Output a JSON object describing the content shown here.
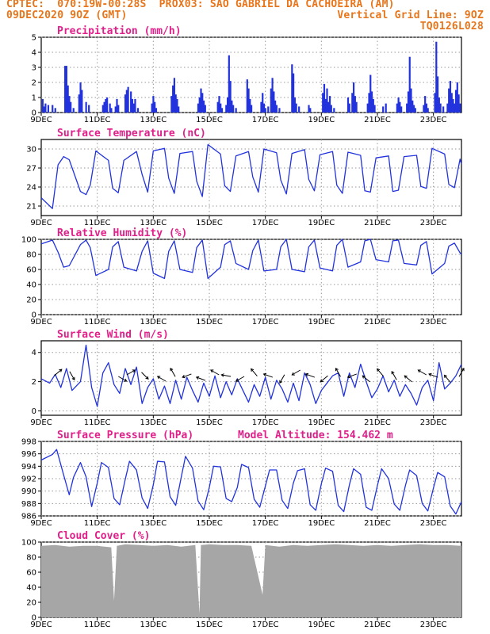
{
  "header": {
    "line1_left": "CPTEC:  070:19W-00:28S  PROX03: SAO GABRIEL DA CACHOEIRA (AM)",
    "line2_left": "09DEC2020 9OZ (GMT)",
    "line2_right": "Vertical Grid Line: 9OZ",
    "line3_right": "TQ0126L028"
  },
  "colors": {
    "header": "#e8751a",
    "title": "#e0208a",
    "series": "#2233dd",
    "cloud": "#a6a6a6"
  },
  "x_axis": {
    "tick_labels": [
      "9DEC",
      "11DEC",
      "13DEC",
      "15DEC",
      "17DEC",
      "19DEC",
      "21DEC",
      "23DEC"
    ],
    "tick_days": [
      0,
      2,
      4,
      6,
      8,
      10,
      12,
      14
    ],
    "range_days": [
      0,
      15
    ]
  },
  "chart_data": [
    {
      "type": "bar",
      "title": "Precipitation (mm/h)",
      "ylim": [
        0,
        5
      ],
      "yticks": [
        0,
        1,
        2,
        3,
        4,
        5
      ],
      "bars": [
        [
          0.05,
          0.9
        ],
        [
          0.1,
          0.4
        ],
        [
          0.15,
          0.6
        ],
        [
          0.25,
          0.5
        ],
        [
          0.4,
          0.5
        ],
        [
          0.5,
          0.3
        ],
        [
          0.85,
          3.1
        ],
        [
          0.9,
          3.1
        ],
        [
          0.95,
          1.8
        ],
        [
          1.0,
          1.1
        ],
        [
          1.05,
          0.7
        ],
        [
          1.15,
          0.3
        ],
        [
          1.35,
          1.2
        ],
        [
          1.4,
          2.0
        ],
        [
          1.45,
          1.5
        ],
        [
          1.6,
          0.7
        ],
        [
          1.7,
          0.5
        ],
        [
          2.2,
          0.5
        ],
        [
          2.25,
          0.7
        ],
        [
          2.3,
          0.9
        ],
        [
          2.35,
          1.0
        ],
        [
          2.45,
          0.6
        ],
        [
          2.5,
          0.3
        ],
        [
          2.65,
          0.4
        ],
        [
          2.7,
          0.9
        ],
        [
          2.75,
          0.5
        ],
        [
          3.0,
          1.2
        ],
        [
          3.05,
          1.5
        ],
        [
          3.1,
          1.7
        ],
        [
          3.2,
          1.4
        ],
        [
          3.25,
          0.9
        ],
        [
          3.3,
          0.6
        ],
        [
          3.35,
          0.9
        ],
        [
          3.45,
          0.3
        ],
        [
          3.95,
          0.6
        ],
        [
          4.0,
          1.1
        ],
        [
          4.05,
          0.7
        ],
        [
          4.1,
          0.3
        ],
        [
          4.65,
          1.1
        ],
        [
          4.7,
          1.8
        ],
        [
          4.75,
          2.3
        ],
        [
          4.8,
          1.2
        ],
        [
          4.85,
          0.9
        ],
        [
          4.9,
          0.4
        ],
        [
          5.6,
          0.6
        ],
        [
          5.65,
          1.0
        ],
        [
          5.7,
          1.6
        ],
        [
          5.75,
          1.3
        ],
        [
          5.8,
          0.8
        ],
        [
          5.85,
          0.5
        ],
        [
          6.3,
          0.7
        ],
        [
          6.35,
          1.1
        ],
        [
          6.4,
          0.6
        ],
        [
          6.45,
          0.3
        ],
        [
          6.6,
          0.5
        ],
        [
          6.65,
          1.0
        ],
        [
          6.7,
          3.8
        ],
        [
          6.75,
          2.1
        ],
        [
          6.8,
          0.8
        ],
        [
          6.85,
          0.5
        ],
        [
          6.95,
          0.3
        ],
        [
          7.35,
          2.2
        ],
        [
          7.4,
          1.6
        ],
        [
          7.45,
          0.9
        ],
        [
          7.5,
          0.5
        ],
        [
          7.85,
          0.7
        ],
        [
          7.9,
          1.3
        ],
        [
          7.95,
          0.6
        ],
        [
          8.0,
          0.3
        ],
        [
          8.1,
          0.4
        ],
        [
          8.2,
          1.6
        ],
        [
          8.25,
          2.3
        ],
        [
          8.3,
          1.4
        ],
        [
          8.35,
          0.8
        ],
        [
          8.4,
          0.5
        ],
        [
          8.5,
          0.3
        ],
        [
          8.95,
          3.2
        ],
        [
          9.0,
          2.6
        ],
        [
          9.05,
          1.0
        ],
        [
          9.1,
          0.6
        ],
        [
          9.2,
          0.4
        ],
        [
          9.55,
          0.5
        ],
        [
          9.6,
          0.3
        ],
        [
          10.05,
          1.3
        ],
        [
          10.1,
          1.9
        ],
        [
          10.15,
          0.9
        ],
        [
          10.2,
          1.6
        ],
        [
          10.25,
          0.7
        ],
        [
          10.3,
          1.1
        ],
        [
          10.35,
          0.5
        ],
        [
          10.45,
          0.3
        ],
        [
          10.95,
          1.0
        ],
        [
          11.0,
          0.6
        ],
        [
          11.1,
          1.3
        ],
        [
          11.15,
          2.0
        ],
        [
          11.2,
          1.1
        ],
        [
          11.25,
          0.7
        ],
        [
          11.65,
          0.6
        ],
        [
          11.7,
          1.3
        ],
        [
          11.75,
          2.5
        ],
        [
          11.8,
          1.4
        ],
        [
          11.85,
          0.9
        ],
        [
          11.9,
          0.5
        ],
        [
          12.2,
          0.4
        ],
        [
          12.3,
          0.6
        ],
        [
          12.7,
          0.6
        ],
        [
          12.75,
          1.0
        ],
        [
          12.8,
          0.7
        ],
        [
          12.85,
          0.4
        ],
        [
          13.05,
          0.6
        ],
        [
          13.1,
          1.4
        ],
        [
          13.15,
          3.7
        ],
        [
          13.2,
          1.6
        ],
        [
          13.25,
          0.8
        ],
        [
          13.3,
          0.5
        ],
        [
          13.35,
          0.3
        ],
        [
          13.65,
          0.5
        ],
        [
          13.7,
          1.1
        ],
        [
          13.75,
          0.6
        ],
        [
          13.8,
          0.3
        ],
        [
          14.05,
          1.3
        ],
        [
          14.1,
          4.7
        ],
        [
          14.15,
          2.4
        ],
        [
          14.2,
          1.0
        ],
        [
          14.25,
          0.6
        ],
        [
          14.35,
          0.4
        ],
        [
          14.5,
          0.6
        ],
        [
          14.55,
          1.6
        ],
        [
          14.6,
          2.1
        ],
        [
          14.65,
          1.3
        ],
        [
          14.7,
          0.9
        ],
        [
          14.75,
          0.6
        ],
        [
          14.8,
          1.5
        ],
        [
          14.85,
          2.0
        ],
        [
          14.9,
          1.2
        ],
        [
          14.95,
          0.6
        ]
      ]
    },
    {
      "type": "line",
      "title": "Surface Temperature (nC)",
      "ylim": [
        19.5,
        31.5
      ],
      "yticks": [
        21,
        24,
        27,
        30
      ],
      "x": [
        0,
        0.4,
        0.6,
        0.8,
        1.0,
        1.4,
        1.6,
        1.75,
        1.95,
        2.4,
        2.55,
        2.75,
        2.95,
        3.4,
        3.6,
        3.8,
        4.0,
        4.4,
        4.55,
        4.75,
        4.95,
        5.4,
        5.55,
        5.75,
        5.95,
        6.4,
        6.55,
        6.75,
        6.95,
        7.4,
        7.55,
        7.75,
        7.95,
        8.4,
        8.55,
        8.75,
        8.95,
        9.4,
        9.55,
        9.75,
        9.95,
        10.4,
        10.55,
        10.75,
        10.95,
        11.4,
        11.55,
        11.75,
        11.95,
        12.4,
        12.55,
        12.75,
        12.95,
        13.4,
        13.55,
        13.75,
        13.95,
        14.4,
        14.55,
        14.75,
        14.95,
        15.0
      ],
      "y": [
        22.3,
        20.6,
        27.5,
        28.8,
        28.3,
        23.3,
        22.8,
        24.3,
        29.7,
        28.2,
        23.8,
        23.1,
        28.2,
        29.6,
        26.0,
        23.2,
        29.7,
        30.1,
        25.4,
        23.0,
        29.3,
        29.6,
        24.9,
        22.5,
        30.7,
        29.2,
        24.2,
        23.3,
        28.9,
        29.6,
        25.6,
        23.2,
        30.0,
        29.4,
        25.1,
        22.9,
        29.3,
        29.9,
        25.2,
        23.4,
        29.1,
        29.6,
        24.3,
        23.0,
        29.5,
        29.0,
        23.4,
        23.2,
        28.6,
        28.9,
        23.3,
        23.5,
        28.8,
        29.0,
        24.1,
        23.8,
        30.1,
        29.2,
        24.4,
        23.9,
        28.4,
        27.6
      ]
    },
    {
      "type": "line",
      "title": "Relative Humidity (%)",
      "ylim": [
        0,
        100
      ],
      "yticks": [
        0,
        20,
        40,
        60,
        80,
        100
      ],
      "x": [
        0,
        0.4,
        0.6,
        0.8,
        1.0,
        1.4,
        1.6,
        1.75,
        1.95,
        2.4,
        2.55,
        2.75,
        2.95,
        3.4,
        3.6,
        3.8,
        4.0,
        4.4,
        4.55,
        4.75,
        4.95,
        5.4,
        5.55,
        5.75,
        5.95,
        6.4,
        6.55,
        6.75,
        6.95,
        7.4,
        7.55,
        7.75,
        7.95,
        8.4,
        8.55,
        8.75,
        8.95,
        9.4,
        9.55,
        9.75,
        9.95,
        10.4,
        10.55,
        10.75,
        10.95,
        11.4,
        11.55,
        11.75,
        11.95,
        12.4,
        12.55,
        12.75,
        12.95,
        13.4,
        13.55,
        13.75,
        13.95,
        14.4,
        14.55,
        14.75,
        14.95,
        15.0
      ],
      "y": [
        94,
        99,
        83,
        63,
        65,
        93,
        99,
        89,
        52,
        60,
        90,
        97,
        63,
        58,
        84,
        98,
        55,
        48,
        84,
        98,
        60,
        56,
        89,
        99,
        48,
        63,
        93,
        98,
        68,
        60,
        85,
        99,
        58,
        60,
        90,
        100,
        60,
        57,
        90,
        99,
        62,
        58,
        92,
        100,
        63,
        70,
        98,
        100,
        73,
        70,
        98,
        99,
        68,
        66,
        92,
        97,
        54,
        68,
        91,
        95,
        82,
        80
      ]
    },
    {
      "type": "line",
      "title": "Surface Wind (m/s)",
      "ylim": [
        -0.3,
        4.8
      ],
      "yticks": [
        0,
        2,
        4
      ],
      "x": [
        0,
        0.3,
        0.5,
        0.7,
        0.9,
        1.1,
        1.4,
        1.6,
        1.8,
        2.0,
        2.2,
        2.4,
        2.6,
        2.8,
        3.0,
        3.2,
        3.4,
        3.6,
        3.8,
        4.0,
        4.2,
        4.4,
        4.6,
        4.8,
        5.0,
        5.2,
        5.4,
        5.6,
        5.8,
        6.0,
        6.2,
        6.4,
        6.6,
        6.8,
        7.0,
        7.2,
        7.4,
        7.6,
        7.8,
        8.0,
        8.2,
        8.4,
        8.6,
        8.8,
        9.0,
        9.2,
        9.4,
        9.6,
        9.8,
        10.0,
        10.2,
        10.4,
        10.6,
        10.8,
        11.0,
        11.2,
        11.4,
        11.6,
        11.8,
        12.0,
        12.2,
        12.4,
        12.6,
        12.8,
        13.0,
        13.2,
        13.4,
        13.6,
        13.8,
        14.0,
        14.2,
        14.4,
        14.6,
        14.8,
        15.0
      ],
      "y": [
        2.2,
        1.9,
        2.5,
        1.6,
        2.9,
        1.4,
        2.0,
        4.5,
        1.6,
        0.3,
        2.6,
        3.3,
        1.8,
        1.2,
        2.9,
        1.8,
        3.0,
        0.5,
        1.6,
        2.2,
        0.8,
        1.7,
        0.5,
        2.1,
        0.8,
        2.3,
        1.4,
        0.6,
        1.9,
        1.0,
        2.4,
        0.9,
        2.0,
        1.1,
        2.2,
        1.4,
        0.6,
        1.8,
        1.0,
        2.3,
        0.8,
        2.1,
        1.5,
        0.6,
        1.9,
        0.7,
        2.6,
        1.8,
        0.5,
        1.4,
        1.9,
        2.4,
        2.6,
        1.0,
        2.6,
        1.6,
        3.2,
        2.0,
        0.9,
        1.5,
        2.4,
        1.3,
        2.1,
        1.0,
        1.8,
        1.2,
        0.4,
        1.6,
        2.1,
        0.7,
        3.3,
        1.5,
        1.9,
        2.4,
        3.2
      ]
    },
    {
      "type": "line",
      "title": "Surface Pressure (hPa)",
      "annotation": "Model Altitude: 154.462 m",
      "ylim": [
        986,
        998
      ],
      "yticks": [
        986,
        988,
        990,
        992,
        994,
        996,
        998
      ],
      "x": [
        0,
        0.4,
        0.55,
        0.8,
        1.0,
        1.15,
        1.4,
        1.6,
        1.8,
        2.0,
        2.15,
        2.4,
        2.6,
        2.8,
        3.0,
        3.15,
        3.4,
        3.6,
        3.8,
        4.0,
        4.15,
        4.4,
        4.6,
        4.8,
        5.0,
        5.15,
        5.4,
        5.6,
        5.8,
        6.0,
        6.15,
        6.4,
        6.6,
        6.8,
        7.0,
        7.15,
        7.4,
        7.6,
        7.8,
        8.0,
        8.15,
        8.4,
        8.6,
        8.8,
        9.0,
        9.15,
        9.4,
        9.6,
        9.8,
        10.0,
        10.15,
        10.4,
        10.6,
        10.8,
        11.0,
        11.15,
        11.4,
        11.6,
        11.8,
        12.0,
        12.15,
        12.4,
        12.6,
        12.8,
        13.0,
        13.15,
        13.4,
        13.6,
        13.8,
        14.0,
        14.15,
        14.4,
        14.6,
        14.8,
        15.0
      ],
      "y": [
        995.0,
        995.9,
        996.7,
        992.6,
        989.4,
        992.2,
        994.6,
        992.3,
        987.5,
        991.3,
        994.6,
        993.8,
        988.8,
        987.8,
        991.9,
        994.8,
        993.4,
        988.9,
        987.2,
        991.0,
        994.8,
        994.7,
        989.1,
        987.7,
        992.3,
        995.6,
        993.7,
        988.4,
        987.0,
        990.6,
        994.0,
        993.9,
        988.8,
        988.3,
        990.6,
        994.3,
        993.8,
        988.7,
        987.4,
        990.8,
        993.4,
        993.4,
        988.5,
        987.2,
        991.3,
        993.3,
        993.6,
        987.8,
        986.9,
        991.2,
        993.7,
        993.2,
        987.7,
        986.7,
        991.0,
        993.6,
        992.7,
        987.4,
        986.9,
        990.9,
        993.6,
        992.0,
        987.9,
        986.9,
        990.9,
        993.4,
        992.5,
        988.0,
        986.8,
        990.5,
        993.0,
        992.3,
        987.6,
        986.3,
        988.3
      ]
    },
    {
      "type": "bar",
      "title": "Cloud Cover (%)",
      "ylim": [
        0,
        100
      ],
      "yticks": [
        0,
        20,
        40,
        60,
        80,
        100
      ],
      "x": [
        0,
        0.5,
        1.0,
        1.5,
        2.0,
        2.5,
        2.6,
        2.7,
        3.0,
        3.5,
        4.0,
        4.5,
        5.0,
        5.5,
        5.65,
        5.7,
        6.0,
        6.5,
        7.0,
        7.5,
        7.9,
        8.0,
        8.5,
        9.0,
        9.5,
        10.0,
        10.5,
        11.0,
        11.5,
        12.0,
        12.5,
        13.0,
        13.5,
        14.0,
        14.5,
        15.0
      ],
      "y": [
        95,
        96,
        94,
        95,
        95,
        93,
        22,
        95,
        97,
        96,
        95,
        96,
        94,
        96,
        5,
        96,
        97,
        96,
        96,
        95,
        30,
        96,
        94,
        96,
        95,
        96,
        97,
        96,
        95,
        96,
        95,
        96,
        97,
        96,
        96,
        95
      ]
    }
  ]
}
